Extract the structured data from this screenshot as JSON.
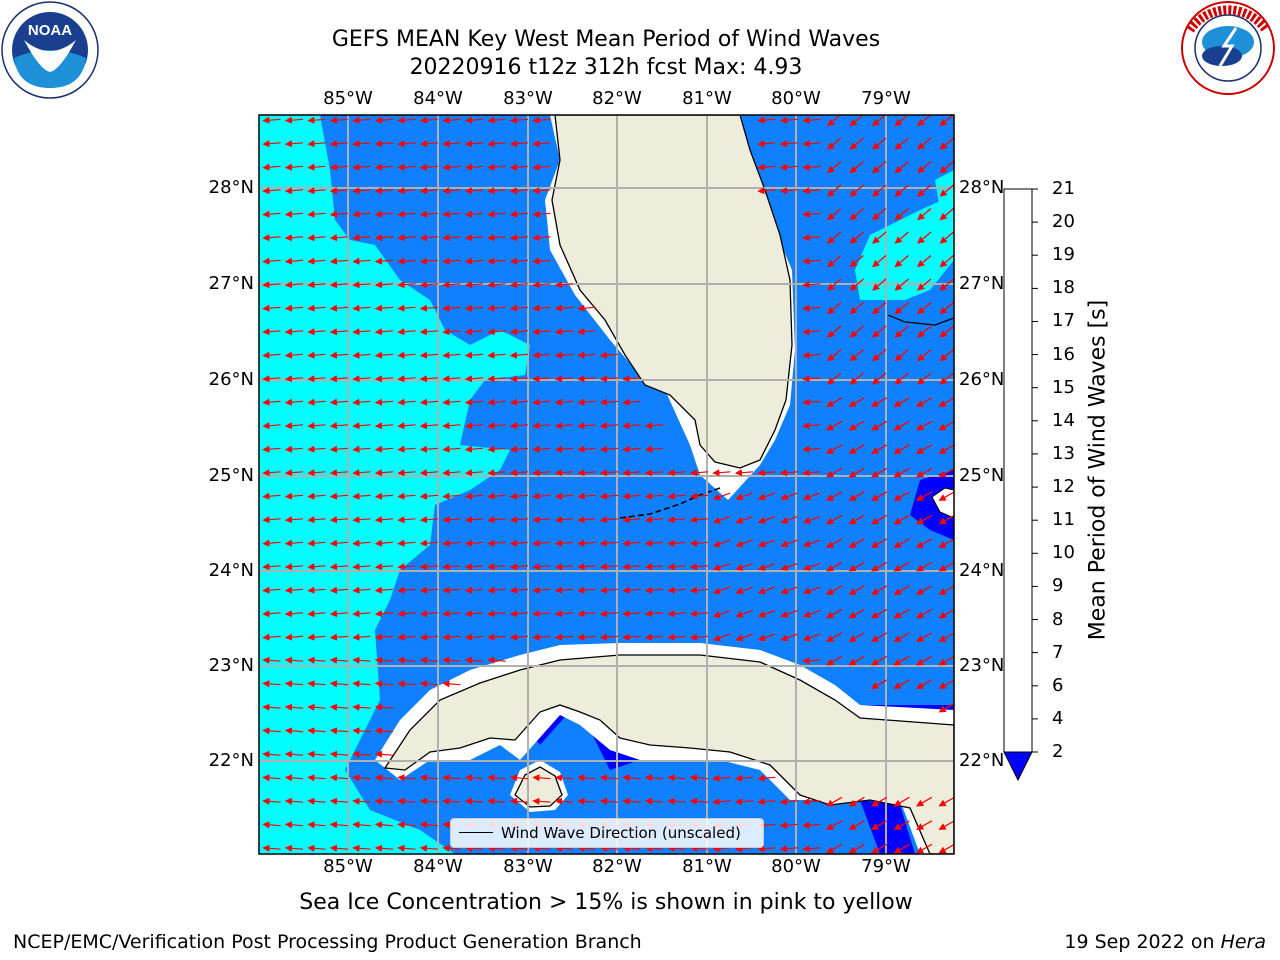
{
  "header": {
    "title_line1": "GEFS MEAN Key West Mean Period of Wind Waves",
    "title_line2": "20220916 t12z 312h fcst   Max: 4.93"
  },
  "logos": {
    "left": {
      "name": "noaa-logo",
      "text": "NOAA",
      "ring_text": "NATIONAL OCEANIC AND ATMOSPHERIC ADMINISTRATION · U.S. DEPARTMENT OF COMMERCE"
    },
    "right": {
      "name": "nws-logo",
      "ring_text": "NATIONAL WEATHER SERVICE"
    }
  },
  "map": {
    "lon_labels": [
      "85°W",
      "84°W",
      "83°W",
      "82°W",
      "81°W",
      "80°W",
      "79°W"
    ],
    "lat_labels": [
      "28°N",
      "27°N",
      "26°N",
      "25°N",
      "24°N",
      "23°N",
      "22°N"
    ],
    "colors": {
      "land": "#eeeddb",
      "water_dark": "#0f80ff",
      "water_light": "#00ffff",
      "water_deep": "#0000ff",
      "arrow": "#ff0000",
      "grid": "#b0b0b0"
    }
  },
  "legend": {
    "label": "Wind Wave Direction (unscaled)"
  },
  "colorbar": {
    "label": "Mean Period of Wind Waves [s]",
    "ticks": [
      "2",
      "4",
      "6",
      "7",
      "8",
      "9",
      "10",
      "11",
      "12",
      "13",
      "14",
      "15",
      "16",
      "17",
      "18",
      "19",
      "20",
      "21"
    ],
    "colors": [
      "#0f80ff",
      "#00ffff",
      "#40ffff",
      "#80ffff",
      "#aaffff",
      "#55ff80",
      "#00e000",
      "#55e000",
      "#aaee00",
      "#ccee00",
      "#eeee00",
      "#ffff00",
      "#ffdd00",
      "#ffbb00",
      "#ff8800",
      "#ff6600",
      "#ff3300",
      "#ff0000"
    ],
    "under_color": "#0000ff"
  },
  "bottom_note": "Sea Ice Concentration > 15% is shown in pink to yellow",
  "footer": {
    "left": "NCEP/EMC/Verification Post Processing Product Generation Branch",
    "right_date": "19 Sep 2022 on ",
    "right_host": "Hera"
  }
}
